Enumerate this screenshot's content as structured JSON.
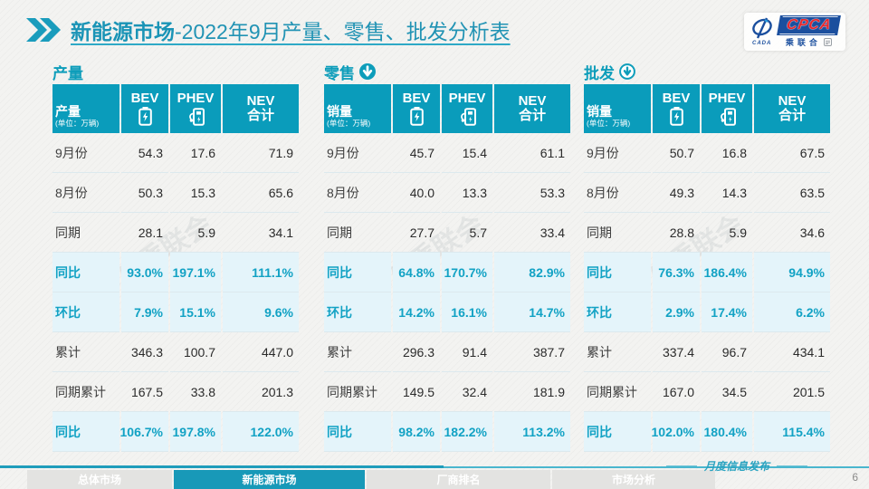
{
  "page": {
    "title_bold": "新能源市场",
    "title_rest": "-2022年9月产量、零售、批发分析表"
  },
  "logo": {
    "cpca": "CPCA",
    "sub": "乘联合",
    "emblem": "CADA"
  },
  "decor": {
    "watermark": "CPCA 乘联会"
  },
  "colors": {
    "teal": "#0a9cbb",
    "highlight_bg": "#e4f4fa",
    "highlight_text": "#12a2c4",
    "title": "#2193b4",
    "logo_blue": "#1b4f9e",
    "logo_red": "#e8262b"
  },
  "chart_data": [
    {
      "type": "table",
      "title": "产量",
      "unit": "万辆",
      "columns": [
        "BEV",
        "PHEV",
        "NEV合计"
      ],
      "row_labels": [
        "9月份",
        "8月份",
        "同期",
        "同比",
        "环比",
        "累计",
        "同期累计",
        "同比"
      ],
      "rows": [
        [
          "54.3",
          "17.6",
          "71.9"
        ],
        [
          "50.3",
          "15.3",
          "65.6"
        ],
        [
          "28.1",
          "5.9",
          "34.1"
        ],
        [
          "93.0%",
          "197.1%",
          "111.1%"
        ],
        [
          "7.9%",
          "15.1%",
          "9.6%"
        ],
        [
          "346.3",
          "100.7",
          "447.0"
        ],
        [
          "167.5",
          "33.8",
          "201.3"
        ],
        [
          "106.7%",
          "197.8%",
          "122.0%"
        ]
      ]
    },
    {
      "type": "table",
      "title": "零售",
      "unit": "万辆",
      "columns": [
        "BEV",
        "PHEV",
        "NEV合计"
      ],
      "row_labels": [
        "9月份",
        "8月份",
        "同期",
        "同比",
        "环比",
        "累计",
        "同期累计",
        "同比"
      ],
      "rows": [
        [
          "45.7",
          "15.4",
          "61.1"
        ],
        [
          "40.0",
          "13.3",
          "53.3"
        ],
        [
          "27.7",
          "5.7",
          "33.4"
        ],
        [
          "64.8%",
          "170.7%",
          "82.9%"
        ],
        [
          "14.2%",
          "16.1%",
          "14.7%"
        ],
        [
          "296.3",
          "91.4",
          "387.7"
        ],
        [
          "149.5",
          "32.4",
          "181.9"
        ],
        [
          "98.2%",
          "182.2%",
          "113.2%"
        ]
      ]
    },
    {
      "type": "table",
      "title": "批发",
      "unit": "万辆",
      "columns": [
        "BEV",
        "PHEV",
        "NEV合计"
      ],
      "row_labels": [
        "9月份",
        "8月份",
        "同期",
        "同比",
        "环比",
        "累计",
        "同期累计",
        "同比"
      ],
      "rows": [
        [
          "50.7",
          "16.8",
          "67.5"
        ],
        [
          "49.3",
          "14.3",
          "63.5"
        ],
        [
          "28.8",
          "5.9",
          "34.6"
        ],
        [
          "76.3%",
          "186.4%",
          "94.9%"
        ],
        [
          "2.9%",
          "17.4%",
          "6.2%"
        ],
        [
          "337.4",
          "96.7",
          "434.1"
        ],
        [
          "167.0",
          "34.5",
          "201.5"
        ],
        [
          "102.0%",
          "180.4%",
          "115.4%"
        ]
      ]
    }
  ],
  "tables": [
    {
      "section_label": "产量",
      "arrow": "none",
      "header": {
        "label": "产量",
        "unit": "(单位：万辆)",
        "col_bev": "BEV",
        "col_phev": "PHEV",
        "col_nev_1": "NEV",
        "col_nev_2": "合计"
      },
      "rows": [
        {
          "label": "9月份",
          "bev": "54.3",
          "phev": "17.6",
          "nev": "71.9",
          "highlight": false
        },
        {
          "label": "8月份",
          "bev": "50.3",
          "phev": "15.3",
          "nev": "65.6",
          "highlight": false
        },
        {
          "label": "同期",
          "bev": "28.1",
          "phev": "5.9",
          "nev": "34.1",
          "highlight": false
        },
        {
          "label": "同比",
          "bev": "93.0%",
          "phev": "197.1%",
          "nev": "111.1%",
          "highlight": true
        },
        {
          "label": "环比",
          "bev": "7.9%",
          "phev": "15.1%",
          "nev": "9.6%",
          "highlight": true
        },
        {
          "label": "累计",
          "bev": "346.3",
          "phev": "100.7",
          "nev": "447.0",
          "highlight": false
        },
        {
          "label": "同期累计",
          "bev": "167.5",
          "phev": "33.8",
          "nev": "201.3",
          "highlight": false
        },
        {
          "label": "同比",
          "bev": "106.7%",
          "phev": "197.8%",
          "nev": "122.0%",
          "highlight": true
        }
      ]
    },
    {
      "section_label": "零售",
      "arrow": "solid",
      "header": {
        "label": "销量",
        "unit": "(单位：万辆)",
        "col_bev": "BEV",
        "col_phev": "PHEV",
        "col_nev_1": "NEV",
        "col_nev_2": "合计"
      },
      "rows": [
        {
          "label": "9月份",
          "bev": "45.7",
          "phev": "15.4",
          "nev": "61.1",
          "highlight": false
        },
        {
          "label": "8月份",
          "bev": "40.0",
          "phev": "13.3",
          "nev": "53.3",
          "highlight": false
        },
        {
          "label": "同期",
          "bev": "27.7",
          "phev": "5.7",
          "nev": "33.4",
          "highlight": false
        },
        {
          "label": "同比",
          "bev": "64.8%",
          "phev": "170.7%",
          "nev": "82.9%",
          "highlight": true
        },
        {
          "label": "环比",
          "bev": "14.2%",
          "phev": "16.1%",
          "nev": "14.7%",
          "highlight": true
        },
        {
          "label": "累计",
          "bev": "296.3",
          "phev": "91.4",
          "nev": "387.7",
          "highlight": false
        },
        {
          "label": "同期累计",
          "bev": "149.5",
          "phev": "32.4",
          "nev": "181.9",
          "highlight": false
        },
        {
          "label": "同比",
          "bev": "98.2%",
          "phev": "182.2%",
          "nev": "113.2%",
          "highlight": true
        }
      ]
    },
    {
      "section_label": "批发",
      "arrow": "outline",
      "header": {
        "label": "销量",
        "unit": "(单位：万辆)",
        "col_bev": "BEV",
        "col_phev": "PHEV",
        "col_nev_1": "NEV",
        "col_nev_2": "合计"
      },
      "rows": [
        {
          "label": "9月份",
          "bev": "50.7",
          "phev": "16.8",
          "nev": "67.5",
          "highlight": false
        },
        {
          "label": "8月份",
          "bev": "49.3",
          "phev": "14.3",
          "nev": "63.5",
          "highlight": false
        },
        {
          "label": "同期",
          "bev": "28.8",
          "phev": "5.9",
          "nev": "34.6",
          "highlight": false
        },
        {
          "label": "同比",
          "bev": "76.3%",
          "phev": "186.4%",
          "nev": "94.9%",
          "highlight": true
        },
        {
          "label": "环比",
          "bev": "2.9%",
          "phev": "17.4%",
          "nev": "6.2%",
          "highlight": true
        },
        {
          "label": "累计",
          "bev": "337.4",
          "phev": "96.7",
          "nev": "434.1",
          "highlight": false
        },
        {
          "label": "同期累计",
          "bev": "167.0",
          "phev": "34.5",
          "nev": "201.5",
          "highlight": false
        },
        {
          "label": "同比",
          "bev": "102.0%",
          "phev": "180.4%",
          "nev": "115.4%",
          "highlight": true
        }
      ]
    }
  ],
  "bottom_nav": [
    {
      "label": "总体市场",
      "active": false
    },
    {
      "label": "新能源市场",
      "active": true
    },
    {
      "label": "厂商排名",
      "active": false
    },
    {
      "label": "市场分析",
      "active": false
    }
  ],
  "footer": {
    "note": "月度信息发布",
    "page": "6"
  }
}
